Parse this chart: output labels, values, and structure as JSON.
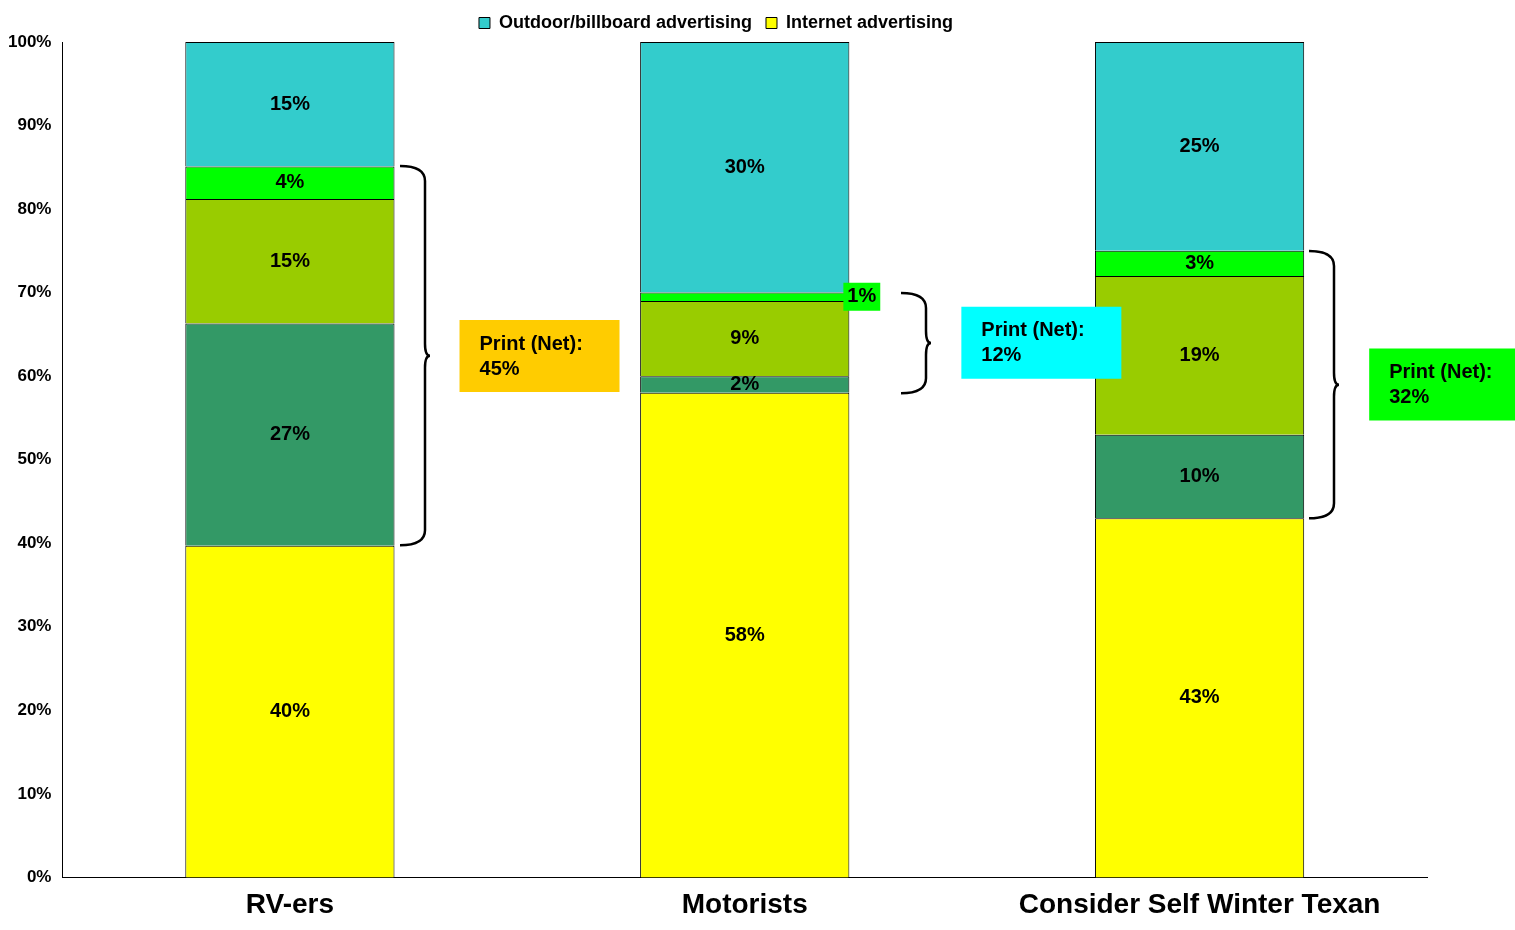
{
  "chart_data": {
    "type": "bar",
    "stacked": true,
    "categories": [
      "RV-ers",
      "Motorists",
      "Consider Self Winter Texan"
    ],
    "series": [
      {
        "name": "Internet advertising",
        "color": "#ffff00",
        "values": [
          39.7,
          58,
          43
        ],
        "value_labels": [
          "40%",
          "58%",
          "43%"
        ]
      },
      {
        "color": "#339966",
        "values": [
          26.6,
          2,
          10
        ],
        "value_labels": [
          "27%",
          "2%",
          "10%"
        ]
      },
      {
        "color": "#99cc00",
        "values": [
          14.9,
          9,
          19
        ],
        "value_labels": [
          "15%",
          "9%",
          "19%"
        ]
      },
      {
        "color": "#00ff00",
        "values": [
          3.9,
          1,
          3
        ],
        "value_labels": [
          "4%",
          "1%",
          "3%"
        ]
      },
      {
        "name": "Outdoor/billboard advertising",
        "color": "#33cccc",
        "values": [
          14.9,
          30,
          25
        ],
        "value_labels": [
          "15%",
          "30%",
          "25%"
        ]
      }
    ],
    "ylim": [
      0,
      100
    ],
    "yticks": [
      {
        "value": 0,
        "label": "0%"
      },
      {
        "value": 10,
        "label": "10%"
      },
      {
        "value": 20,
        "label": "20%"
      },
      {
        "value": 30,
        "label": "30%"
      },
      {
        "value": 40,
        "label": "40%"
      },
      {
        "value": 50,
        "label": "50%"
      },
      {
        "value": 60,
        "label": "60%"
      },
      {
        "value": 70,
        "label": "70%"
      },
      {
        "value": 80,
        "label": "80%"
      },
      {
        "value": 90,
        "label": "90%"
      },
      {
        "value": 100,
        "label": "100%"
      }
    ],
    "grid": false,
    "legend": "top",
    "annotations": [
      "Print (Net): 45%",
      "Print (Net): 12%",
      "Print (Net): 32%"
    ]
  }
}
